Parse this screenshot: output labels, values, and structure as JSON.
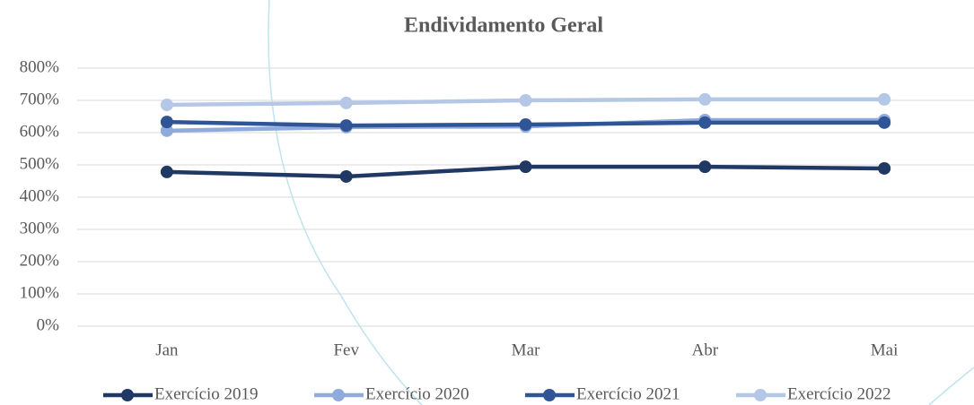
{
  "chart_data": {
    "type": "line",
    "title": "Endividamento Geral",
    "categories": [
      "Jan",
      "Fev",
      "Mar",
      "Abr",
      "Mai"
    ],
    "series": [
      {
        "name": "Exercício 2019",
        "color": "#1f3864",
        "values": [
          478,
          464,
          494,
          494,
          489
        ]
      },
      {
        "name": "Exercício 2020",
        "color": "#8faadc",
        "values": [
          606,
          617,
          619,
          639,
          639
        ]
      },
      {
        "name": "Exercício 2021",
        "color": "#2f5597",
        "values": [
          633,
          622,
          625,
          631,
          631
        ]
      },
      {
        "name": "Exercício 2022",
        "color": "#b4c7e7",
        "values": [
          686,
          692,
          700,
          703,
          703
        ]
      }
    ],
    "ylim": [
      0,
      800
    ],
    "yticks": [
      {
        "value": 0,
        "label": "0%"
      },
      {
        "value": 100,
        "label": "100%"
      },
      {
        "value": 200,
        "label": "200%"
      },
      {
        "value": 300,
        "label": "300%"
      },
      {
        "value": 400,
        "label": "400%"
      },
      {
        "value": 500,
        "label": "500%"
      },
      {
        "value": 600,
        "label": "600%"
      },
      {
        "value": 700,
        "label": "700%"
      },
      {
        "value": 800,
        "label": "800%"
      }
    ],
    "grid": true,
    "legend": "bottom"
  }
}
